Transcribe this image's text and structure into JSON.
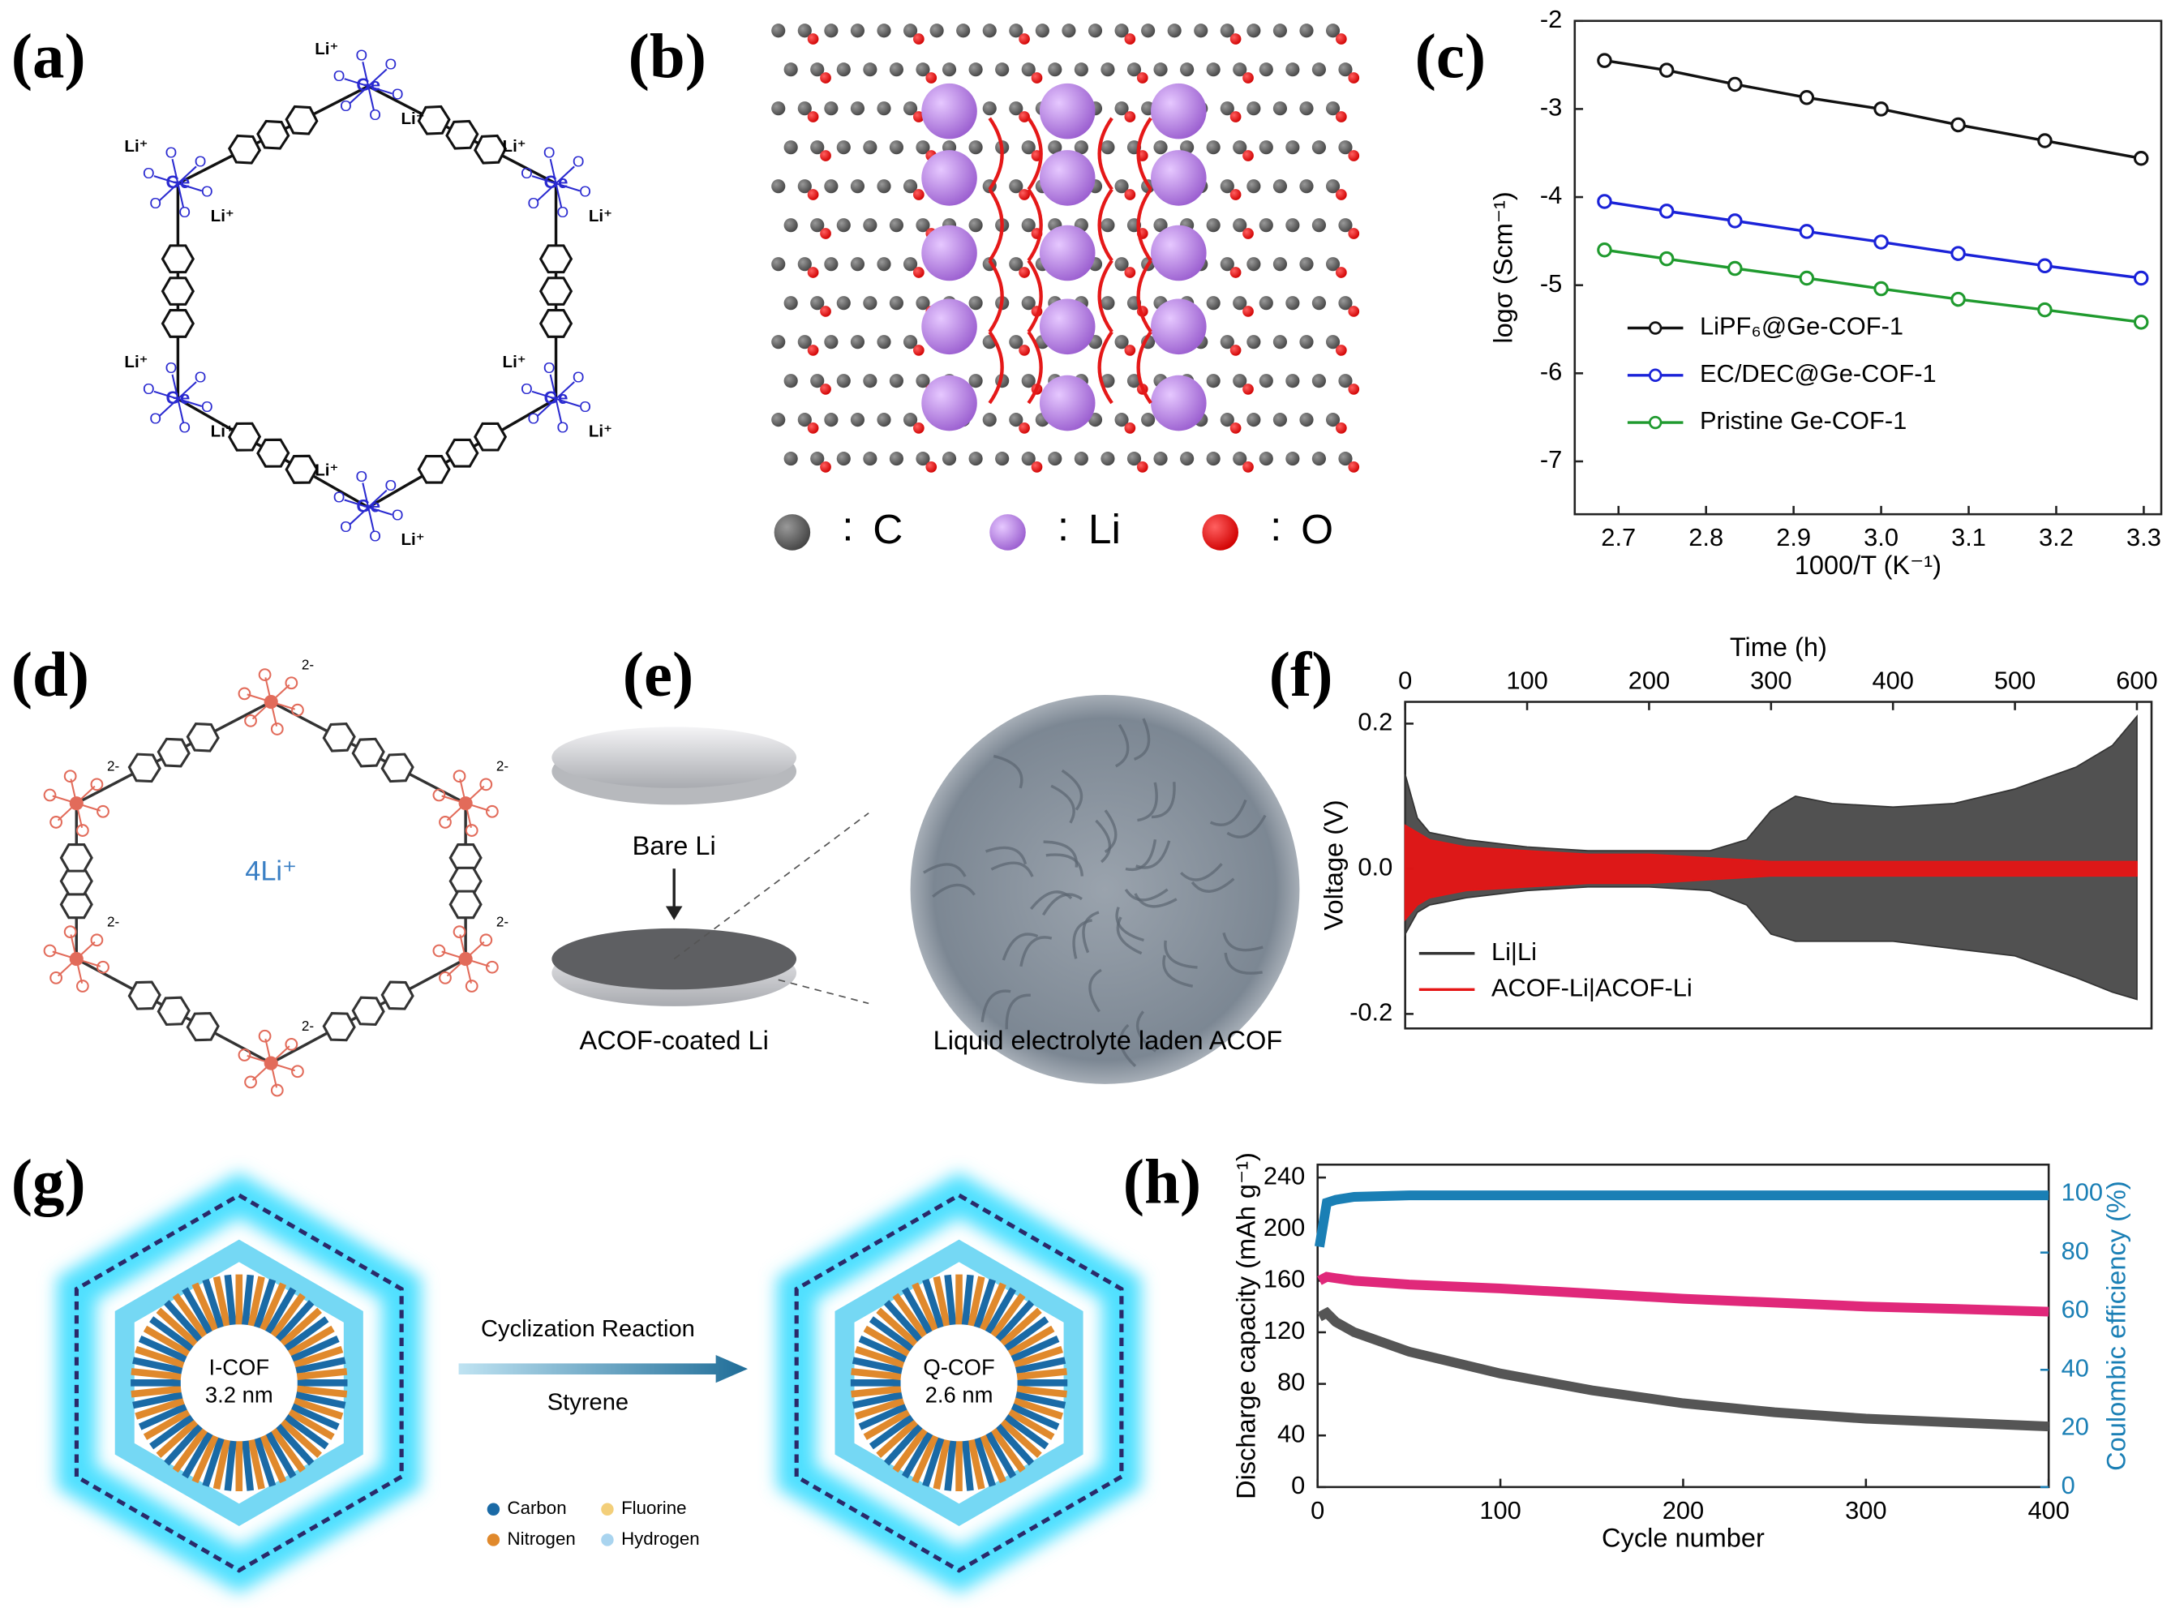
{
  "panels": {
    "labels": [
      "(a)",
      "(b)",
      "(c)",
      "(d)",
      "(e)",
      "(f)",
      "(g)",
      "(h)"
    ]
  },
  "panel_a": {
    "metal": "Ge",
    "cation": "Li⁺",
    "oxygen": "O"
  },
  "panel_b": {
    "separator": ":",
    "legend": [
      "C",
      "Li",
      "O"
    ]
  },
  "panel_d": {
    "center": "4Li⁺",
    "charge": "2-"
  },
  "panel_e": {
    "bare": "Bare Li",
    "coated": "ACOF-coated Li",
    "laden": "Liquid electrolyte laden ACOF"
  },
  "panel_g": {
    "left_name": "I-COF",
    "left_size": "3.2 nm",
    "right_name": "Q-COF",
    "right_size": "2.6 nm",
    "arrow_top": "Cyclization Reaction",
    "arrow_bottom": "Styrene",
    "legend": [
      "Carbon",
      "Fluorine",
      "Nitrogen",
      "Hydrogen"
    ]
  },
  "chart_data": [
    {
      "type": "line",
      "x_label": "1000/T (K⁻¹)",
      "y_label": "logσ (Scm⁻¹)",
      "x": [
        2.684,
        2.755,
        2.833,
        2.915,
        3.0,
        3.088,
        3.187,
        3.297
      ],
      "xlim": [
        2.65,
        3.32
      ],
      "xticks": [
        2.7,
        2.8,
        2.9,
        {
          "value": 3,
          "label": "3.0"
        },
        3.1,
        3.2,
        3.3
      ],
      "ylim": [
        -7.6,
        -2
      ],
      "yticks": [
        -2,
        -3,
        -4,
        -5,
        -6,
        -7
      ],
      "legend": "lower left",
      "marker": "open-circle",
      "series": [
        {
          "name": "LiPF₆@Ge-COF-1",
          "color": "#111111",
          "values": [
            -2.45,
            -2.56,
            -2.72,
            -2.87,
            -3.0,
            -3.18,
            -3.36,
            -3.56
          ]
        },
        {
          "name": "EC/DEC@Ge-COF-1",
          "color": "#1a22d8",
          "values": [
            -4.05,
            -4.16,
            -4.27,
            -4.39,
            -4.51,
            -4.64,
            -4.78,
            -4.92
          ]
        },
        {
          "name": "Pristine Ge-COF-1",
          "color": "#1f9a2e",
          "values": [
            -4.6,
            -4.7,
            -4.81,
            -4.92,
            -5.04,
            -5.16,
            -5.28,
            -5.42
          ]
        }
      ]
    },
    {
      "type": "band",
      "x_label": "Time (h)",
      "y_label": "Voltage (V)",
      "x_axis_position": "top",
      "x": [
        0,
        10,
        20,
        50,
        100,
        150,
        200,
        250,
        280,
        300,
        320,
        350,
        400,
        450,
        500,
        550,
        580,
        600
      ],
      "xlim": [
        0,
        612
      ],
      "xticks": [
        0,
        100,
        200,
        300,
        400,
        500,
        600
      ],
      "ylim": [
        -0.22,
        0.23
      ],
      "yticks": [
        0.2,
        {
          "value": 0,
          "label": "0.0"
        },
        -0.2
      ],
      "legend": "lower left",
      "series": [
        {
          "name": "Li|Li",
          "color": "#333333",
          "high": [
            0.13,
            0.07,
            0.05,
            0.04,
            0.03,
            0.025,
            0.025,
            0.025,
            0.04,
            0.08,
            0.1,
            0.09,
            0.085,
            0.09,
            0.11,
            0.14,
            0.17,
            0.21
          ],
          "low": [
            -0.09,
            -0.06,
            -0.05,
            -0.04,
            -0.03,
            -0.025,
            -0.025,
            -0.03,
            -0.05,
            -0.09,
            -0.1,
            -0.1,
            -0.1,
            -0.11,
            -0.12,
            -0.15,
            -0.17,
            -0.18
          ]
        },
        {
          "name": "ACOF-Li|ACOF-Li",
          "color": "#e51515",
          "high": [
            0.06,
            0.05,
            0.04,
            0.03,
            0.025,
            0.02,
            0.02,
            0.015,
            0.012,
            0.01,
            0.01,
            0.01,
            0.01,
            0.01,
            0.01,
            0.01,
            0.01,
            0.01
          ],
          "low": [
            -0.07,
            -0.05,
            -0.04,
            -0.03,
            -0.025,
            -0.02,
            -0.02,
            -0.015,
            -0.012,
            -0.01,
            -0.01,
            -0.01,
            -0.01,
            -0.01,
            -0.01,
            -0.01,
            -0.01,
            -0.01
          ]
        }
      ]
    },
    {
      "type": "line",
      "x_label": "Cycle number",
      "y_label": "Discharge capacity (mAh g⁻¹)",
      "y2_label": "Coulombic efficiency (%)",
      "x": [
        1,
        5,
        10,
        20,
        50,
        100,
        150,
        200,
        250,
        300,
        350,
        400
      ],
      "xlim": [
        0,
        400
      ],
      "xticks": [
        0,
        100,
        200,
        300,
        400
      ],
      "ylim": [
        0,
        250
      ],
      "yticks": [
        0,
        40,
        80,
        120,
        160,
        200,
        240
      ],
      "y2lim": [
        0,
        110
      ],
      "y2ticks": [
        0,
        20,
        40,
        60,
        80,
        100
      ],
      "y2_color": "#1a7fb5",
      "marker": "thick",
      "series": [
        {
          "color": "#555555",
          "values": [
            132,
            135,
            128,
            120,
            105,
            88,
            75,
            65,
            58,
            53,
            50,
            47
          ]
        },
        {
          "color": "#e0287a",
          "values": [
            160,
            163,
            162,
            160,
            157,
            154,
            150,
            146,
            143,
            140,
            138,
            136
          ]
        },
        {
          "color": "#1a7fb5",
          "axis": "y2",
          "values": [
            82,
            97,
            98,
            99,
            99.5,
            99.5,
            99.5,
            99.5,
            99.5,
            99.5,
            99.5,
            99.5
          ]
        }
      ]
    }
  ]
}
